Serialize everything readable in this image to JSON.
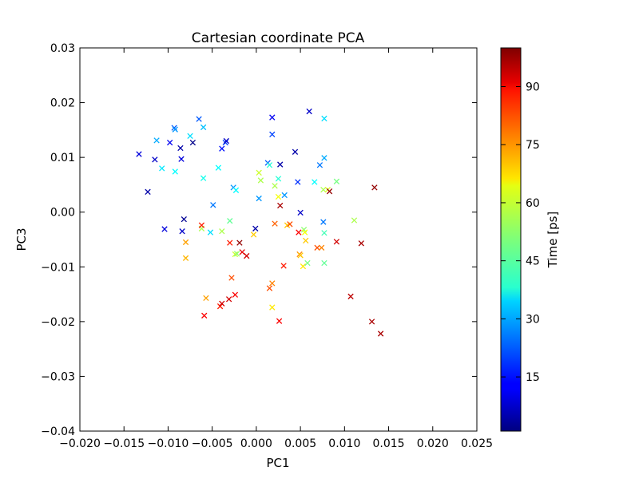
{
  "chart_data": {
    "type": "scatter",
    "title": "Cartesian coordinate PCA",
    "xlabel": "PC1",
    "ylabel": "PC3",
    "xlim": [
      -0.02,
      0.025
    ],
    "ylim": [
      -0.04,
      0.03
    ],
    "xticks": [
      "−0.020",
      "−0.015",
      "−0.010",
      "−0.005",
      "0.000",
      "0.005",
      "0.010",
      "0.015",
      "0.020",
      "0.025"
    ],
    "xtick_values": [
      -0.02,
      -0.015,
      -0.01,
      -0.005,
      0.0,
      0.005,
      0.01,
      0.015,
      0.02,
      0.025
    ],
    "yticks": [
      "0.03",
      "0.02",
      "0.01",
      "0.00",
      "−0.01",
      "−0.02",
      "−0.03",
      "−0.04"
    ],
    "ytick_values": [
      0.03,
      0.02,
      0.01,
      0.0,
      -0.01,
      -0.02,
      -0.03,
      -0.04
    ],
    "marker": "x",
    "colormap": "jet",
    "grid": false,
    "colorbar": {
      "label": "Time [ps]",
      "range": [
        1,
        100
      ],
      "ticks": [
        "15",
        "30",
        "45",
        "60",
        "75",
        "90"
      ],
      "tick_values": [
        15,
        30,
        45,
        60,
        75,
        90
      ]
    },
    "points": [
      {
        "x": -0.0133,
        "y": 0.0106,
        "t": 10
      },
      {
        "x": -0.0123,
        "y": 0.0037,
        "t": 5
      },
      {
        "x": -0.0115,
        "y": 0.0096,
        "t": 8
      },
      {
        "x": -0.0113,
        "y": 0.0131,
        "t": 30
      },
      {
        "x": -0.0107,
        "y": 0.008,
        "t": 36
      },
      {
        "x": -0.0104,
        "y": -0.0031,
        "t": 10
      },
      {
        "x": -0.0098,
        "y": 0.0127,
        "t": 12
      },
      {
        "x": -0.0093,
        "y": 0.0154,
        "t": 22
      },
      {
        "x": -0.0092,
        "y": 0.0151,
        "t": 28
      },
      {
        "x": -0.0092,
        "y": 0.0074,
        "t": 38
      },
      {
        "x": -0.0086,
        "y": 0.0117,
        "t": 5
      },
      {
        "x": -0.0085,
        "y": 0.0097,
        "t": 10
      },
      {
        "x": -0.0084,
        "y": -0.0035,
        "t": 8
      },
      {
        "x": -0.0082,
        "y": -0.0013,
        "t": 3
      },
      {
        "x": -0.008,
        "y": -0.0055,
        "t": 72
      },
      {
        "x": -0.008,
        "y": -0.0084,
        "t": 70
      },
      {
        "x": -0.0075,
        "y": 0.0139,
        "t": 35
      },
      {
        "x": -0.0072,
        "y": 0.0127,
        "t": 2
      },
      {
        "x": -0.0065,
        "y": 0.017,
        "t": 22
      },
      {
        "x": -0.0062,
        "y": -0.003,
        "t": 55
      },
      {
        "x": -0.0062,
        "y": -0.0024,
        "t": 85
      },
      {
        "x": -0.006,
        "y": 0.0062,
        "t": 40
      },
      {
        "x": -0.006,
        "y": 0.0155,
        "t": 32
      },
      {
        "x": -0.0059,
        "y": -0.0189,
        "t": 88
      },
      {
        "x": -0.0057,
        "y": -0.0157,
        "t": 72
      },
      {
        "x": -0.0052,
        "y": -0.0037,
        "t": 35
      },
      {
        "x": -0.0049,
        "y": 0.0013,
        "t": 25
      },
      {
        "x": -0.0043,
        "y": 0.0081,
        "t": 38
      },
      {
        "x": -0.0041,
        "y": -0.0172,
        "t": 85
      },
      {
        "x": -0.0039,
        "y": -0.0035,
        "t": 55
      },
      {
        "x": -0.0039,
        "y": -0.0167,
        "t": 92
      },
      {
        "x": -0.0039,
        "y": 0.0116,
        "t": 15
      },
      {
        "x": -0.0035,
        "y": 0.0127,
        "t": 20
      },
      {
        "x": -0.0034,
        "y": 0.013,
        "t": 8
      },
      {
        "x": -0.0031,
        "y": -0.0159,
        "t": 92
      },
      {
        "x": -0.003,
        "y": -0.0016,
        "t": 48
      },
      {
        "x": -0.003,
        "y": -0.0056,
        "t": 85
      },
      {
        "x": -0.0028,
        "y": -0.012,
        "t": 80
      },
      {
        "x": -0.0026,
        "y": 0.0045,
        "t": 28
      },
      {
        "x": -0.0024,
        "y": -0.0151,
        "t": 88
      },
      {
        "x": -0.0024,
        "y": -0.0077,
        "t": 58
      },
      {
        "x": -0.0023,
        "y": 0.004,
        "t": 38
      },
      {
        "x": -0.0022,
        "y": -0.0076,
        "t": 52
      },
      {
        "x": -0.0019,
        "y": -0.0056,
        "t": 98
      },
      {
        "x": -0.0016,
        "y": -0.0073,
        "t": 90
      },
      {
        "x": -0.0011,
        "y": -0.008,
        "t": 92
      },
      {
        "x": -0.0003,
        "y": -0.0041,
        "t": 68
      },
      {
        "x": -0.0001,
        "y": -0.003,
        "t": 5
      },
      {
        "x": 0.0003,
        "y": 0.0025,
        "t": 28
      },
      {
        "x": 0.0003,
        "y": 0.0072,
        "t": 58
      },
      {
        "x": 0.0005,
        "y": 0.0058,
        "t": 55
      },
      {
        "x": 0.0013,
        "y": 0.009,
        "t": 22
      },
      {
        "x": 0.0015,
        "y": 0.0086,
        "t": 42
      },
      {
        "x": 0.0015,
        "y": -0.0139,
        "t": 80
      },
      {
        "x": 0.0018,
        "y": -0.013,
        "t": 75
      },
      {
        "x": 0.0018,
        "y": 0.0173,
        "t": 12
      },
      {
        "x": 0.0018,
        "y": 0.0142,
        "t": 20
      },
      {
        "x": 0.0018,
        "y": -0.0174,
        "t": 65
      },
      {
        "x": 0.0021,
        "y": 0.0048,
        "t": 55
      },
      {
        "x": 0.0021,
        "y": -0.0021,
        "t": 78
      },
      {
        "x": 0.0025,
        "y": 0.0061,
        "t": 42
      },
      {
        "x": 0.0025,
        "y": 0.0028,
        "t": 62
      },
      {
        "x": 0.0026,
        "y": -0.0199,
        "t": 88
      },
      {
        "x": 0.0027,
        "y": 0.0087,
        "t": 5
      },
      {
        "x": 0.0027,
        "y": 0.0012,
        "t": 96
      },
      {
        "x": 0.0031,
        "y": -0.0098,
        "t": 85
      },
      {
        "x": 0.0032,
        "y": 0.0031,
        "t": 28
      },
      {
        "x": 0.0035,
        "y": -0.0024,
        "t": 68
      },
      {
        "x": 0.0038,
        "y": -0.0022,
        "t": 80
      },
      {
        "x": 0.0044,
        "y": 0.011,
        "t": 5
      },
      {
        "x": 0.0047,
        "y": 0.0055,
        "t": 18
      },
      {
        "x": 0.0048,
        "y": -0.0037,
        "t": 88
      },
      {
        "x": 0.0049,
        "y": -0.0077,
        "t": 75
      },
      {
        "x": 0.005,
        "y": -0.0079,
        "t": 68
      },
      {
        "x": 0.005,
        "y": -0.0001,
        "t": 8
      },
      {
        "x": 0.0053,
        "y": -0.0099,
        "t": 65
      },
      {
        "x": 0.0054,
        "y": -0.0032,
        "t": 52
      },
      {
        "x": 0.0055,
        "y": -0.0037,
        "t": 62
      },
      {
        "x": 0.0056,
        "y": -0.0052,
        "t": 68
      },
      {
        "x": 0.0058,
        "y": -0.0093,
        "t": 50
      },
      {
        "x": 0.006,
        "y": 0.0184,
        "t": 8
      },
      {
        "x": 0.0066,
        "y": 0.0055,
        "t": 38
      },
      {
        "x": 0.0069,
        "y": -0.0065,
        "t": 80
      },
      {
        "x": 0.0072,
        "y": 0.0086,
        "t": 25
      },
      {
        "x": 0.0074,
        "y": -0.0065,
        "t": 75
      },
      {
        "x": 0.0076,
        "y": 0.0041,
        "t": 55
      },
      {
        "x": 0.0076,
        "y": -0.0018,
        "t": 25
      },
      {
        "x": 0.0077,
        "y": 0.0171,
        "t": 35
      },
      {
        "x": 0.0077,
        "y": 0.0099,
        "t": 30
      },
      {
        "x": 0.0077,
        "y": -0.0038,
        "t": 45
      },
      {
        "x": 0.0077,
        "y": -0.0093,
        "t": 48
      },
      {
        "x": 0.0081,
        "y": 0.0041,
        "t": 60
      },
      {
        "x": 0.0083,
        "y": 0.0038,
        "t": 98
      },
      {
        "x": 0.0091,
        "y": 0.0056,
        "t": 50
      },
      {
        "x": 0.0091,
        "y": -0.0054,
        "t": 92
      },
      {
        "x": 0.0107,
        "y": -0.0154,
        "t": 94
      },
      {
        "x": 0.0111,
        "y": -0.0015,
        "t": 55
      },
      {
        "x": 0.0119,
        "y": -0.0057,
        "t": 96
      },
      {
        "x": 0.0131,
        "y": -0.02,
        "t": 96
      },
      {
        "x": 0.0134,
        "y": 0.0045,
        "t": 98
      },
      {
        "x": 0.0141,
        "y": -0.0222,
        "t": 96
      }
    ]
  }
}
